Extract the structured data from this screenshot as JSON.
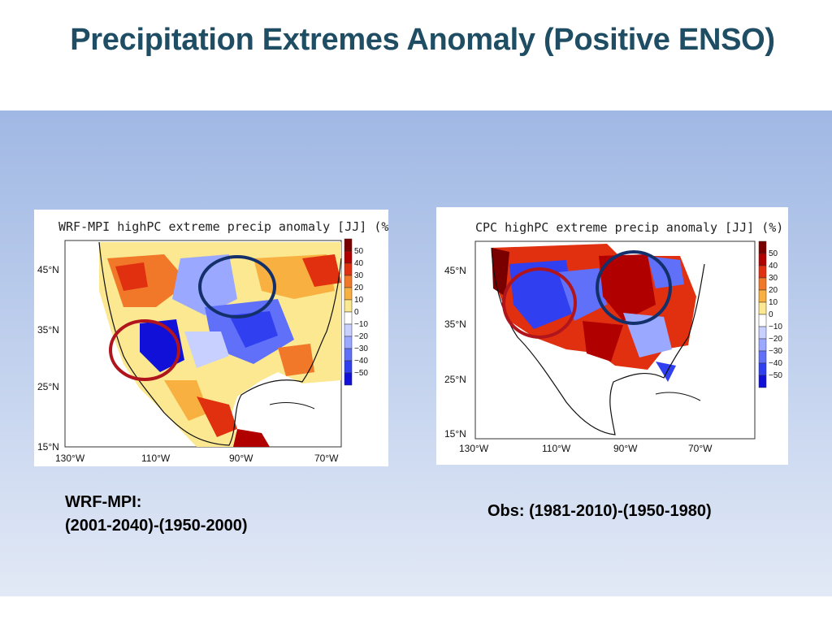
{
  "slide": {
    "title": "Precipitation Extremes Anomaly (Positive ENSO)"
  },
  "maps": [
    {
      "title": "WRF-MPI highPC extreme precip anomaly [JJ] (%)",
      "lat_labels": [
        "45°N",
        "35°N",
        "25°N",
        "15°N"
      ],
      "lon_labels": [
        "130°W",
        "110°W",
        "90°W",
        "70°W"
      ],
      "caption_line1": "WRF-MPI:",
      "caption_line2": "(2001-2040)-(1950-2000)"
    },
    {
      "title": "CPC highPC extreme precip anomaly [JJ] (%)",
      "lat_labels": [
        "45°N",
        "35°N",
        "25°N",
        "15°N"
      ],
      "lon_labels": [
        "130°W",
        "110°W",
        "90°W",
        "70°W"
      ],
      "caption_line1": "Obs: (1981-2010)-(1950-1980)"
    }
  ],
  "colorbar": {
    "labels": [
      "50",
      "40",
      "30",
      "20",
      "10",
      "0",
      "−10",
      "−20",
      "−30",
      "−40",
      "−50"
    ],
    "colors": [
      "#7a0000",
      "#b00000",
      "#e03010",
      "#f07828",
      "#f8b040",
      "#fbe890",
      "#ffffff",
      "#c8d0ff",
      "#9aa8ff",
      "#6070f8",
      "#3040f0",
      "#1010d8"
    ]
  },
  "highlight_colors": {
    "west": "#b0141c",
    "east": "#14306a"
  }
}
